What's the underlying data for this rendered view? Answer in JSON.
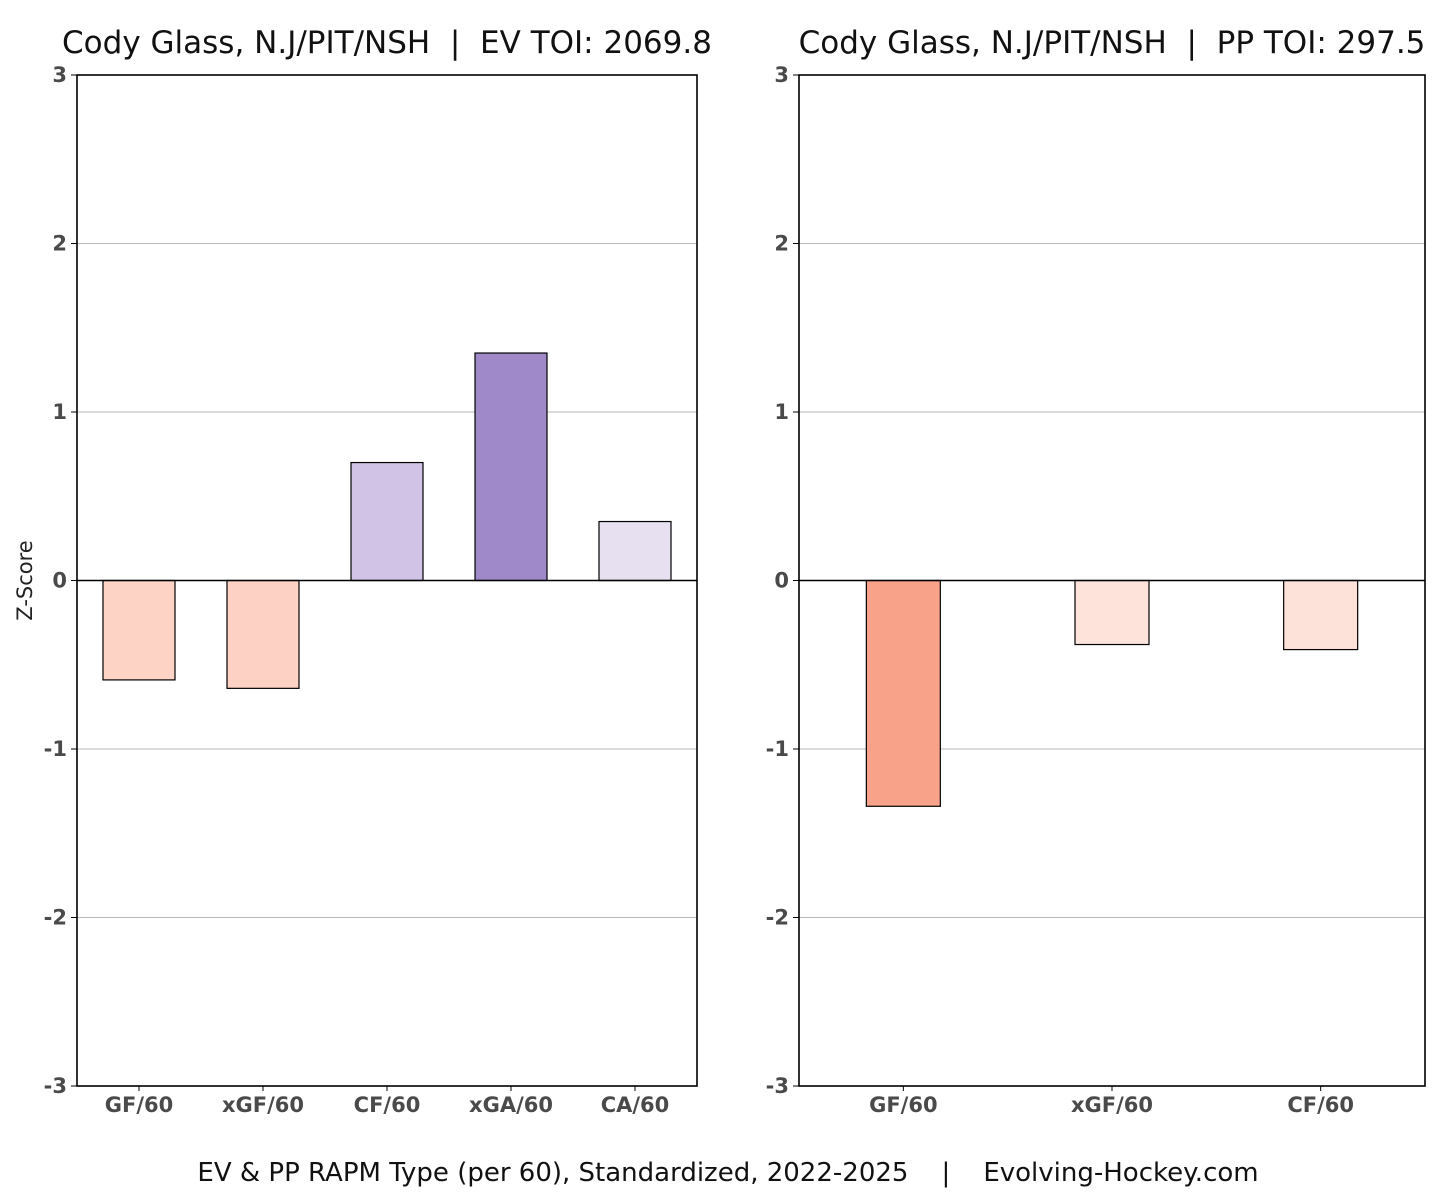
{
  "caption": "EV & PP RAPM Type (per 60), Standardized, 2022-2025    |    Evolving-Hockey.com",
  "chart_data": [
    {
      "type": "bar",
      "title": "Cody Glass, N.J/PIT/NSH  |  EV TOI: 2069.8",
      "ylabel": "Z-Score",
      "xlabel": "",
      "ylim": [
        -3,
        3
      ],
      "yticks": [
        "3",
        "2",
        "1",
        "0",
        "-1",
        "-2",
        "-3"
      ],
      "grid": true,
      "categories": [
        "GF/60",
        "xGF/60",
        "CF/60",
        "xGA/60",
        "CA/60"
      ],
      "values": [
        -0.59,
        -0.64,
        0.7,
        1.35,
        0.35
      ],
      "colors": [
        "#fdd3c6",
        "#fdd1c4",
        "#d1c3e5",
        "#9f89c9",
        "#e7e0f1"
      ]
    },
    {
      "type": "bar",
      "title": "Cody Glass, N.J/PIT/NSH  |  PP TOI: 297.5",
      "ylabel": "",
      "xlabel": "",
      "ylim": [
        -3,
        3
      ],
      "yticks": [
        "3",
        "2",
        "1",
        "0",
        "-1",
        "-2",
        "-3"
      ],
      "grid": true,
      "categories": [
        "GF/60",
        "xGF/60",
        "CF/60"
      ],
      "values": [
        -1.34,
        -0.38,
        -0.41
      ],
      "colors": [
        "#f8a28a",
        "#fde3da",
        "#fde2d9"
      ]
    }
  ]
}
